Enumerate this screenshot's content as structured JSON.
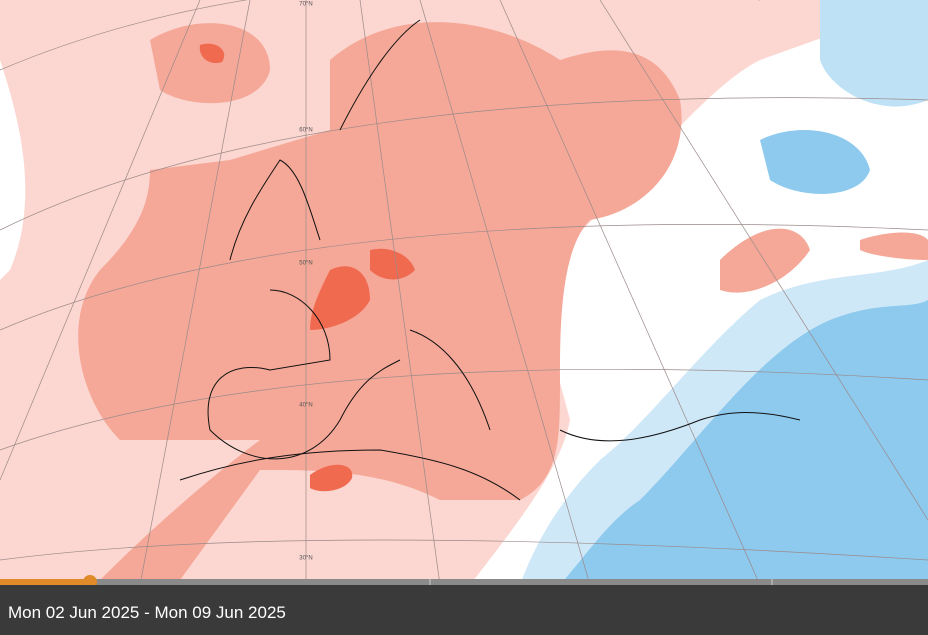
{
  "map": {
    "latitude_labels": [
      "70°N",
      "60°N",
      "50°N",
      "40°N",
      "30°N"
    ]
  },
  "timeline": {
    "date_range": "Mon 02 Jun 2025 - Mon 09 Jun 2025"
  }
}
